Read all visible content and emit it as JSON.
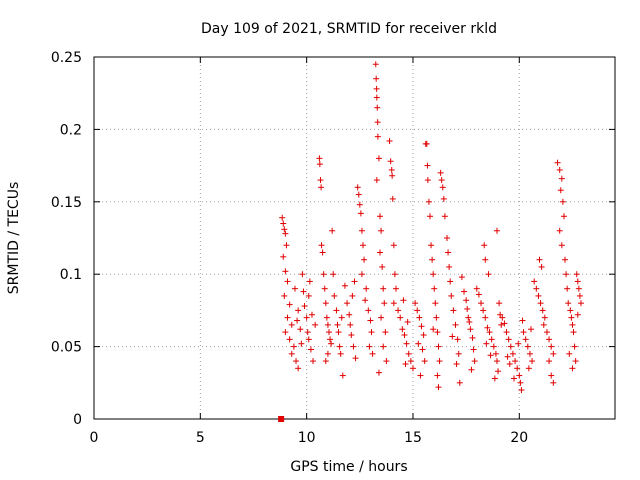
{
  "chart_data": {
    "type": "scatter",
    "title": "Day 109 of 2021, SRMTID for receiver rkld",
    "xlabel": "GPS time / hours",
    "ylabel": "SRMTID / TECUs",
    "xlim": [
      0,
      24.5
    ],
    "ylim": [
      0,
      0.25
    ],
    "x_ticks": [
      0,
      5,
      10,
      15,
      20
    ],
    "y_ticks": [
      0,
      0.05,
      0.1,
      0.15,
      0.2,
      0.25
    ],
    "x_tick_labels": [
      "0",
      "5",
      "10",
      "15",
      "20"
    ],
    "y_tick_labels": [
      "0",
      "0.05",
      "0.1",
      "0.15",
      "0.2",
      "0.25"
    ],
    "grid": true,
    "marker": "+",
    "series_color": "#e00000",
    "series": [
      {
        "name": "SRMTID",
        "points": [
          [
            8.8,
            0.0
          ],
          [
            8.85,
            0.139
          ],
          [
            8.9,
            0.135
          ],
          [
            8.95,
            0.131
          ],
          [
            9.0,
            0.128
          ],
          [
            9.05,
            0.12
          ],
          [
            8.9,
            0.112
          ],
          [
            9.0,
            0.102
          ],
          [
            9.1,
            0.095
          ],
          [
            8.95,
            0.085
          ],
          [
            9.2,
            0.079
          ],
          [
            9.1,
            0.07
          ],
          [
            9.3,
            0.065
          ],
          [
            9.0,
            0.06
          ],
          [
            9.2,
            0.055
          ],
          [
            9.4,
            0.05
          ],
          [
            9.3,
            0.045
          ],
          [
            9.5,
            0.04
          ],
          [
            9.6,
            0.035
          ],
          [
            9.45,
            0.09
          ],
          [
            9.6,
            0.075
          ],
          [
            9.7,
            0.062
          ],
          [
            9.75,
            0.052
          ],
          [
            9.55,
            0.068
          ],
          [
            9.8,
            0.1
          ],
          [
            9.85,
            0.088
          ],
          [
            9.9,
            0.078
          ],
          [
            10.0,
            0.07
          ],
          [
            10.05,
            0.06
          ],
          [
            10.1,
            0.055
          ],
          [
            10.2,
            0.048
          ],
          [
            10.3,
            0.04
          ],
          [
            10.1,
            0.085
          ],
          [
            10.15,
            0.095
          ],
          [
            10.25,
            0.072
          ],
          [
            10.4,
            0.065
          ],
          [
            10.6,
            0.18
          ],
          [
            10.62,
            0.176
          ],
          [
            10.65,
            0.165
          ],
          [
            10.68,
            0.16
          ],
          [
            10.7,
            0.12
          ],
          [
            10.75,
            0.115
          ],
          [
            10.8,
            0.1
          ],
          [
            10.85,
            0.09
          ],
          [
            10.9,
            0.08
          ],
          [
            10.95,
            0.07
          ],
          [
            11.0,
            0.065
          ],
          [
            11.05,
            0.06
          ],
          [
            11.1,
            0.055
          ],
          [
            11.0,
            0.045
          ],
          [
            10.9,
            0.04
          ],
          [
            11.15,
            0.052
          ],
          [
            11.2,
            0.13
          ],
          [
            11.25,
            0.1
          ],
          [
            11.3,
            0.085
          ],
          [
            11.4,
            0.075
          ],
          [
            11.5,
            0.06
          ],
          [
            11.55,
            0.05
          ],
          [
            11.6,
            0.045
          ],
          [
            11.7,
            0.03
          ],
          [
            11.45,
            0.065
          ],
          [
            11.65,
            0.07
          ],
          [
            11.8,
            0.092
          ],
          [
            11.9,
            0.08
          ],
          [
            12.0,
            0.072
          ],
          [
            12.05,
            0.065
          ],
          [
            12.1,
            0.058
          ],
          [
            12.2,
            0.05
          ],
          [
            12.3,
            0.042
          ],
          [
            12.15,
            0.085
          ],
          [
            12.25,
            0.095
          ],
          [
            12.4,
            0.16
          ],
          [
            12.45,
            0.155
          ],
          [
            12.5,
            0.148
          ],
          [
            12.55,
            0.142
          ],
          [
            12.6,
            0.13
          ],
          [
            12.65,
            0.12
          ],
          [
            12.7,
            0.11
          ],
          [
            12.6,
            0.1
          ],
          [
            12.8,
            0.09
          ],
          [
            12.9,
            0.075
          ],
          [
            13.0,
            0.068
          ],
          [
            13.05,
            0.06
          ],
          [
            12.95,
            0.05
          ],
          [
            13.1,
            0.045
          ],
          [
            12.75,
            0.082
          ],
          [
            13.25,
            0.245
          ],
          [
            13.27,
            0.235
          ],
          [
            13.29,
            0.228
          ],
          [
            13.3,
            0.222
          ],
          [
            13.32,
            0.215
          ],
          [
            13.34,
            0.205
          ],
          [
            13.35,
            0.195
          ],
          [
            13.4,
            0.18
          ],
          [
            13.3,
            0.165
          ],
          [
            13.45,
            0.14
          ],
          [
            13.5,
            0.13
          ],
          [
            13.45,
            0.115
          ],
          [
            13.55,
            0.105
          ],
          [
            13.6,
            0.09
          ],
          [
            13.65,
            0.08
          ],
          [
            13.5,
            0.07
          ],
          [
            13.7,
            0.06
          ],
          [
            13.6,
            0.05
          ],
          [
            13.75,
            0.04
          ],
          [
            13.4,
            0.032
          ],
          [
            13.9,
            0.192
          ],
          [
            13.95,
            0.178
          ],
          [
            14.0,
            0.172
          ],
          [
            14.02,
            0.168
          ],
          [
            14.05,
            0.152
          ],
          [
            14.1,
            0.12
          ],
          [
            14.15,
            0.1
          ],
          [
            14.2,
            0.09
          ],
          [
            14.1,
            0.08
          ],
          [
            14.3,
            0.075
          ],
          [
            14.4,
            0.07
          ],
          [
            14.5,
            0.062
          ],
          [
            14.6,
            0.058
          ],
          [
            14.7,
            0.052
          ],
          [
            14.8,
            0.045
          ],
          [
            14.9,
            0.04
          ],
          [
            15.0,
            0.035
          ],
          [
            14.55,
            0.082
          ],
          [
            14.75,
            0.067
          ],
          [
            14.65,
            0.038
          ],
          [
            15.1,
            0.08
          ],
          [
            15.2,
            0.075
          ],
          [
            15.3,
            0.07
          ],
          [
            15.4,
            0.064
          ],
          [
            15.5,
            0.058
          ],
          [
            15.45,
            0.048
          ],
          [
            15.55,
            0.04
          ],
          [
            15.35,
            0.03
          ],
          [
            15.25,
            0.052
          ],
          [
            15.6,
            0.19
          ],
          [
            15.65,
            0.19
          ],
          [
            15.68,
            0.175
          ],
          [
            15.7,
            0.165
          ],
          [
            15.75,
            0.15
          ],
          [
            15.8,
            0.14
          ],
          [
            15.85,
            0.12
          ],
          [
            15.9,
            0.11
          ],
          [
            15.95,
            0.1
          ],
          [
            16.0,
            0.09
          ],
          [
            16.05,
            0.08
          ],
          [
            16.1,
            0.07
          ],
          [
            16.15,
            0.06
          ],
          [
            16.2,
            0.05
          ],
          [
            16.25,
            0.04
          ],
          [
            16.15,
            0.03
          ],
          [
            16.2,
            0.022
          ],
          [
            15.95,
            0.062
          ],
          [
            16.3,
            0.17
          ],
          [
            16.35,
            0.165
          ],
          [
            16.4,
            0.16
          ],
          [
            16.45,
            0.152
          ],
          [
            16.5,
            0.14
          ],
          [
            16.6,
            0.125
          ],
          [
            16.65,
            0.115
          ],
          [
            16.7,
            0.105
          ],
          [
            16.75,
            0.095
          ],
          [
            16.8,
            0.085
          ],
          [
            16.9,
            0.075
          ],
          [
            17.0,
            0.065
          ],
          [
            17.1,
            0.055
          ],
          [
            17.15,
            0.045
          ],
          [
            17.05,
            0.038
          ],
          [
            17.2,
            0.025
          ],
          [
            16.85,
            0.057
          ],
          [
            17.3,
            0.098
          ],
          [
            17.4,
            0.088
          ],
          [
            17.5,
            0.082
          ],
          [
            17.55,
            0.076
          ],
          [
            17.6,
            0.07
          ],
          [
            17.7,
            0.062
          ],
          [
            17.8,
            0.056
          ],
          [
            17.85,
            0.048
          ],
          [
            17.9,
            0.04
          ],
          [
            17.75,
            0.034
          ],
          [
            17.65,
            0.067
          ],
          [
            18.0,
            0.09
          ],
          [
            18.1,
            0.086
          ],
          [
            18.2,
            0.08
          ],
          [
            18.3,
            0.075
          ],
          [
            18.4,
            0.07
          ],
          [
            18.5,
            0.063
          ],
          [
            18.6,
            0.06
          ],
          [
            18.7,
            0.055
          ],
          [
            18.8,
            0.05
          ],
          [
            18.9,
            0.045
          ],
          [
            18.95,
            0.04
          ],
          [
            19.0,
            0.033
          ],
          [
            18.85,
            0.028
          ],
          [
            18.45,
            0.052
          ],
          [
            18.65,
            0.044
          ],
          [
            18.35,
            0.12
          ],
          [
            18.4,
            0.11
          ],
          [
            18.55,
            0.1
          ],
          [
            18.95,
            0.13
          ],
          [
            19.05,
            0.08
          ],
          [
            19.1,
            0.072
          ],
          [
            19.15,
            0.065
          ],
          [
            19.2,
            0.07
          ],
          [
            19.3,
            0.066
          ],
          [
            19.4,
            0.06
          ],
          [
            19.5,
            0.055
          ],
          [
            19.6,
            0.05
          ],
          [
            19.7,
            0.045
          ],
          [
            19.8,
            0.04
          ],
          [
            19.9,
            0.035
          ],
          [
            20.0,
            0.03
          ],
          [
            20.05,
            0.025
          ],
          [
            20.1,
            0.02
          ],
          [
            19.55,
            0.038
          ],
          [
            19.75,
            0.028
          ],
          [
            19.95,
            0.052
          ],
          [
            19.45,
            0.043
          ],
          [
            20.15,
            0.068
          ],
          [
            20.2,
            0.06
          ],
          [
            20.3,
            0.055
          ],
          [
            20.4,
            0.05
          ],
          [
            20.5,
            0.045
          ],
          [
            20.6,
            0.04
          ],
          [
            20.45,
            0.035
          ],
          [
            20.55,
            0.062
          ],
          [
            20.7,
            0.095
          ],
          [
            20.8,
            0.09
          ],
          [
            20.9,
            0.085
          ],
          [
            21.0,
            0.08
          ],
          [
            21.1,
            0.075
          ],
          [
            21.2,
            0.07
          ],
          [
            20.95,
            0.11
          ],
          [
            21.05,
            0.105
          ],
          [
            21.15,
            0.065
          ],
          [
            21.3,
            0.06
          ],
          [
            21.4,
            0.055
          ],
          [
            21.5,
            0.05
          ],
          [
            21.6,
            0.045
          ],
          [
            21.4,
            0.04
          ],
          [
            21.5,
            0.03
          ],
          [
            21.6,
            0.025
          ],
          [
            21.8,
            0.177
          ],
          [
            21.9,
            0.172
          ],
          [
            22.0,
            0.166
          ],
          [
            21.95,
            0.158
          ],
          [
            22.05,
            0.15
          ],
          [
            22.1,
            0.14
          ],
          [
            21.9,
            0.13
          ],
          [
            22.0,
            0.12
          ],
          [
            22.15,
            0.11
          ],
          [
            22.2,
            0.1
          ],
          [
            22.25,
            0.09
          ],
          [
            22.3,
            0.08
          ],
          [
            22.4,
            0.075
          ],
          [
            22.45,
            0.07
          ],
          [
            22.5,
            0.065
          ],
          [
            22.55,
            0.06
          ],
          [
            22.6,
            0.05
          ],
          [
            22.65,
            0.04
          ],
          [
            22.5,
            0.035
          ],
          [
            22.35,
            0.045
          ],
          [
            22.7,
            0.1
          ],
          [
            22.75,
            0.095
          ],
          [
            22.8,
            0.09
          ],
          [
            22.85,
            0.085
          ],
          [
            22.9,
            0.08
          ],
          [
            22.75,
            0.072
          ]
        ]
      }
    ]
  }
}
